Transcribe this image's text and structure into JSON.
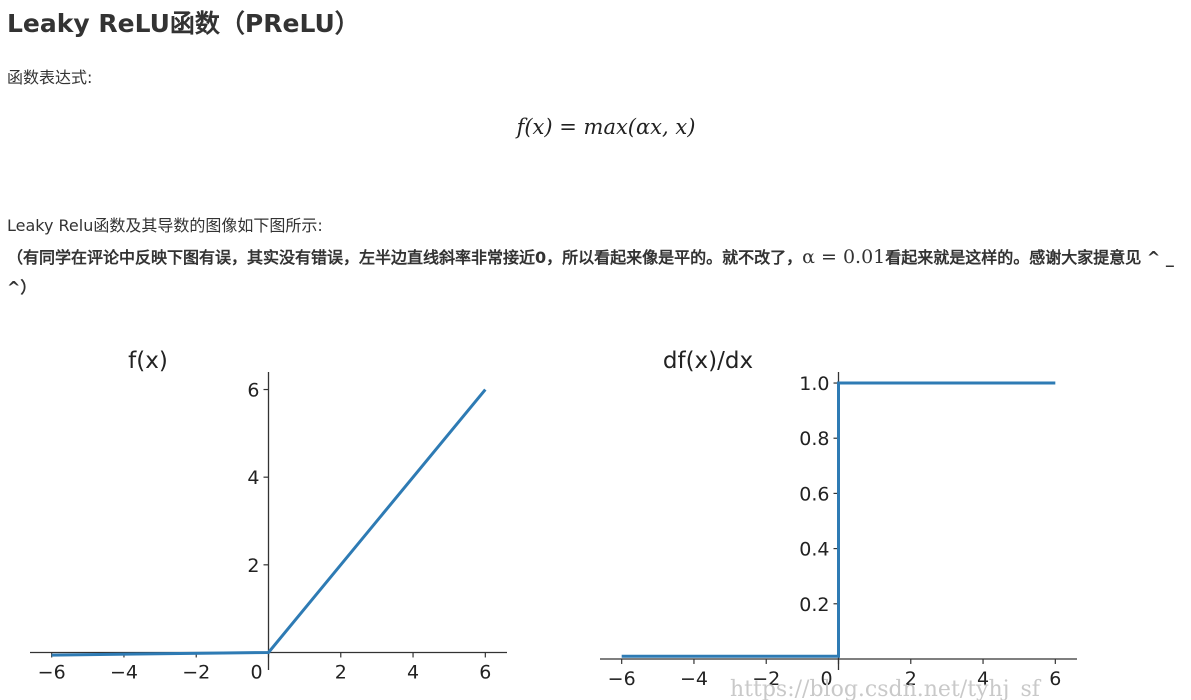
{
  "heading": "Leaky ReLU函数（PReLU）",
  "intro": "函数表达式:",
  "formula": "f(x) = max(αx, x)",
  "caption": "Leaky Relu函数及其导数的图像如下图所示:",
  "note_before": "（有同学在评论中反映下图有误，其实没有错误，左半边直线斜率非常接近0，所以看起来像是平的。就不改了，",
  "note_math": "α = 0.01",
  "note_after": "看起来就是这样的。感谢大家提意见 ^ _ ^）",
  "watermark": "https://blog.csdn.net/tyhj_sf",
  "chart_data": [
    {
      "type": "line",
      "title": "f(x)",
      "xticks": [
        "−6",
        "−4",
        "−2",
        "0",
        "2",
        "4",
        "6"
      ],
      "yticks": [
        "2",
        "4",
        "6"
      ],
      "xlim": [
        -6.6,
        6.6
      ],
      "ylim": [
        -0.4,
        6.4
      ],
      "series": [
        {
          "color": "#2e7bb4",
          "x": [
            -6,
            0,
            6
          ],
          "y": [
            -0.06,
            0,
            6
          ]
        }
      ]
    },
    {
      "type": "line",
      "title": "df(x)/dx",
      "xticks": [
        "−6",
        "−4",
        "−2",
        "0",
        "2",
        "4",
        "6"
      ],
      "yticks": [
        "0.2",
        "0.4",
        "0.6",
        "0.8",
        "1.0"
      ],
      "xlim": [
        -6.6,
        6.6
      ],
      "ylim": [
        -0.04,
        1.04
      ],
      "series": [
        {
          "color": "#2e7bb4",
          "x": [
            -6,
            0,
            0,
            6
          ],
          "y": [
            0.01,
            0.01,
            1,
            1
          ]
        }
      ]
    }
  ]
}
